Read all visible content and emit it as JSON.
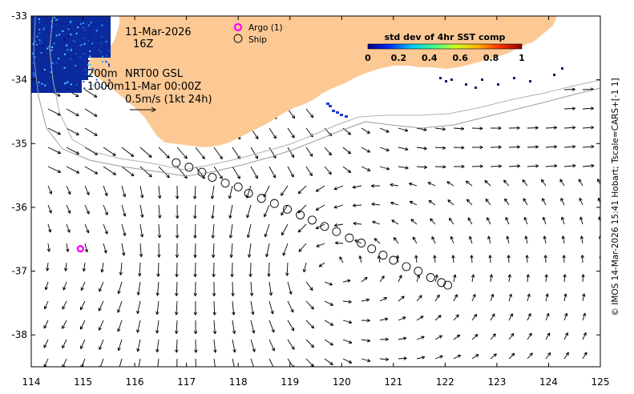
{
  "map": {
    "x_ticks": [
      114,
      115,
      116,
      117,
      118,
      119,
      120,
      121,
      122,
      123,
      124,
      125
    ],
    "y_ticks": [
      -33,
      -34,
      -35,
      -36,
      -37,
      -38
    ],
    "x_range": [
      114,
      125
    ],
    "y_range": [
      -38.5,
      -33
    ],
    "colors": {
      "land": "#fcc995",
      "argo": "#ff00ff",
      "arrow": "#000000",
      "contour": "#a8a8a8",
      "sst_patch": "#0a2a9e"
    }
  },
  "annotations": {
    "date": "11-Mar-2026",
    "hour": "16Z",
    "depth_200": "200m",
    "depth_1000": "1000m",
    "product": "NRT00 GSL",
    "product_time": "11-Mar 00:00Z",
    "scale": "0.5m/s (1kt 24h)"
  },
  "legend": {
    "argo_label": "Argo (1)",
    "ship_label": "Ship"
  },
  "colorbar": {
    "title": "std dev of 4hr SST comp",
    "ticks": [
      "0",
      "0.2",
      "0.4",
      "0.6",
      "0.8",
      "1"
    ],
    "colors": [
      "#00008f",
      "#0030ff",
      "#00c8ff",
      "#40ff90",
      "#d0ff20",
      "#ffb000",
      "#ff3000",
      "#8f0000"
    ]
  },
  "credit": "© IMOS 14-Mar-2026 15:41 Hobart; Tscale=CARS+[-1 1]",
  "argo_float": {
    "lon": 114.95,
    "lat": -36.65
  },
  "ship_track": [
    {
      "lon": 116.8,
      "lat": -35.3
    },
    {
      "lon": 117.05,
      "lat": -35.37
    },
    {
      "lon": 117.3,
      "lat": -35.45
    },
    {
      "lon": 117.5,
      "lat": -35.53
    },
    {
      "lon": 117.75,
      "lat": -35.62
    },
    {
      "lon": 118.0,
      "lat": -35.68
    },
    {
      "lon": 118.2,
      "lat": -35.78
    },
    {
      "lon": 118.45,
      "lat": -35.86
    },
    {
      "lon": 118.7,
      "lat": -35.94
    },
    {
      "lon": 118.95,
      "lat": -36.03
    },
    {
      "lon": 119.2,
      "lat": -36.12
    },
    {
      "lon": 119.43,
      "lat": -36.2
    },
    {
      "lon": 119.67,
      "lat": -36.3
    },
    {
      "lon": 119.9,
      "lat": -36.38
    },
    {
      "lon": 120.15,
      "lat": -36.48
    },
    {
      "lon": 120.38,
      "lat": -36.56
    },
    {
      "lon": 120.58,
      "lat": -36.65
    },
    {
      "lon": 120.8,
      "lat": -36.75
    },
    {
      "lon": 121.0,
      "lat": -36.83
    },
    {
      "lon": 121.25,
      "lat": -36.93
    },
    {
      "lon": 121.48,
      "lat": -37.0
    },
    {
      "lon": 121.72,
      "lat": -37.1
    },
    {
      "lon": 121.93,
      "lat": -37.18
    },
    {
      "lon": 122.05,
      "lat": -37.22
    }
  ]
}
